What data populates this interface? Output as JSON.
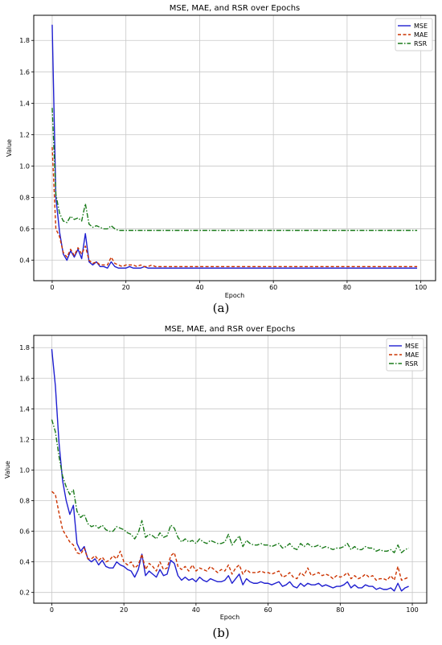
{
  "captions": [
    "(a)",
    "(b)"
  ],
  "chart_data": [
    {
      "type": "line",
      "title": "MSE, MAE, and RSR over Epochs",
      "xlabel": "Epoch",
      "ylabel": "Value",
      "xlim": [
        -5,
        104
      ],
      "ylim": [
        0.27,
        1.96
      ],
      "xticks": [
        0,
        20,
        40,
        60,
        80,
        100
      ],
      "yticks": [
        0.4,
        0.6,
        0.8,
        1.0,
        1.2,
        1.4,
        1.6,
        1.8
      ],
      "ytick_labels": [
        "0.4",
        "0.6",
        "0.8",
        "1.0",
        "1.2",
        "1.4",
        "1.6",
        "1.8"
      ],
      "grid": true,
      "legend": "top-right",
      "x": [
        0,
        1,
        2,
        3,
        4,
        5,
        6,
        7,
        8,
        9,
        10,
        11,
        12,
        13,
        14,
        15,
        16,
        17,
        18,
        19,
        20,
        21,
        22,
        23,
        24,
        25,
        26,
        27,
        28,
        29,
        30,
        31,
        32,
        33,
        34,
        35,
        36,
        37,
        38,
        39,
        40,
        41,
        42,
        43,
        44,
        45,
        46,
        47,
        48,
        49,
        50,
        51,
        52,
        53,
        54,
        55,
        56,
        57,
        58,
        59,
        60,
        61,
        62,
        63,
        64,
        65,
        66,
        67,
        68,
        69,
        70,
        71,
        72,
        73,
        74,
        75,
        76,
        77,
        78,
        79,
        80,
        81,
        82,
        83,
        84,
        85,
        86,
        87,
        88,
        89,
        90,
        91,
        92,
        93,
        94,
        95,
        96,
        97,
        98,
        99
      ],
      "series": [
        {
          "name": "MSE",
          "color": "#1f1fd0",
          "dash": "solid",
          "values": [
            1.9,
            0.8,
            0.58,
            0.44,
            0.4,
            0.46,
            0.42,
            0.47,
            0.41,
            0.57,
            0.39,
            0.37,
            0.39,
            0.36,
            0.36,
            0.35,
            0.39,
            0.36,
            0.35,
            0.35,
            0.35,
            0.36,
            0.35,
            0.35,
            0.35,
            0.36,
            0.35,
            0.35,
            0.35,
            0.35,
            0.35,
            0.35,
            0.35,
            0.35,
            0.35,
            0.35,
            0.35,
            0.35,
            0.35,
            0.35,
            0.35,
            0.35,
            0.35,
            0.35,
            0.35,
            0.35,
            0.35,
            0.35,
            0.35,
            0.35,
            0.35,
            0.35,
            0.35,
            0.35,
            0.35,
            0.35,
            0.35,
            0.35,
            0.35,
            0.35,
            0.35,
            0.35,
            0.35,
            0.35,
            0.35,
            0.35,
            0.35,
            0.35,
            0.35,
            0.35,
            0.35,
            0.35,
            0.35,
            0.35,
            0.35,
            0.35,
            0.35,
            0.35,
            0.35,
            0.35,
            0.35,
            0.35,
            0.35,
            0.35,
            0.35,
            0.35,
            0.35,
            0.35,
            0.35,
            0.35,
            0.35,
            0.35,
            0.35,
            0.35,
            0.35,
            0.35,
            0.35,
            0.35,
            0.35,
            0.35
          ]
        },
        {
          "name": "MAE",
          "color": "#cc3300",
          "dash": "dashed",
          "values": [
            1.12,
            0.6,
            0.55,
            0.45,
            0.42,
            0.47,
            0.43,
            0.48,
            0.44,
            0.49,
            0.4,
            0.38,
            0.39,
            0.37,
            0.37,
            0.37,
            0.42,
            0.38,
            0.37,
            0.36,
            0.37,
            0.37,
            0.37,
            0.36,
            0.37,
            0.36,
            0.36,
            0.37,
            0.36,
            0.36,
            0.36,
            0.36,
            0.36,
            0.36,
            0.36,
            0.36,
            0.36,
            0.36,
            0.36,
            0.36,
            0.36,
            0.36,
            0.36,
            0.36,
            0.36,
            0.36,
            0.36,
            0.36,
            0.36,
            0.36,
            0.36,
            0.36,
            0.36,
            0.36,
            0.36,
            0.36,
            0.36,
            0.36,
            0.36,
            0.36,
            0.36,
            0.36,
            0.36,
            0.36,
            0.36,
            0.36,
            0.36,
            0.36,
            0.36,
            0.36,
            0.36,
            0.36,
            0.36,
            0.36,
            0.36,
            0.36,
            0.36,
            0.36,
            0.36,
            0.36,
            0.36,
            0.36,
            0.36,
            0.36,
            0.36,
            0.36,
            0.36,
            0.36,
            0.36,
            0.36,
            0.36,
            0.36,
            0.36,
            0.36,
            0.36,
            0.36,
            0.36,
            0.36,
            0.36,
            0.36
          ]
        },
        {
          "name": "RSR",
          "color": "#1a7a1a",
          "dash": "dashdot",
          "values": [
            1.37,
            0.82,
            0.7,
            0.65,
            0.64,
            0.68,
            0.66,
            0.67,
            0.65,
            0.76,
            0.63,
            0.61,
            0.62,
            0.61,
            0.6,
            0.6,
            0.62,
            0.6,
            0.59,
            0.59,
            0.59,
            0.59,
            0.59,
            0.59,
            0.59,
            0.59,
            0.59,
            0.59,
            0.59,
            0.59,
            0.59,
            0.59,
            0.59,
            0.59,
            0.59,
            0.59,
            0.59,
            0.59,
            0.59,
            0.59,
            0.59,
            0.59,
            0.59,
            0.59,
            0.59,
            0.59,
            0.59,
            0.59,
            0.59,
            0.59,
            0.59,
            0.59,
            0.59,
            0.59,
            0.59,
            0.59,
            0.59,
            0.59,
            0.59,
            0.59,
            0.59,
            0.59,
            0.59,
            0.59,
            0.59,
            0.59,
            0.59,
            0.59,
            0.59,
            0.59,
            0.59,
            0.59,
            0.59,
            0.59,
            0.59,
            0.59,
            0.59,
            0.59,
            0.59,
            0.59,
            0.59,
            0.59,
            0.59,
            0.59,
            0.59,
            0.59,
            0.59,
            0.59,
            0.59,
            0.59,
            0.59,
            0.59,
            0.59,
            0.59,
            0.59,
            0.59,
            0.59,
            0.59,
            0.59,
            0.59
          ]
        }
      ]
    },
    {
      "type": "line",
      "title": "MSE, MAE, and RSR over Epochs",
      "xlabel": "Epoch",
      "ylabel": "Value",
      "xlim": [
        -5,
        104
      ],
      "ylim": [
        0.13,
        1.88
      ],
      "xticks": [
        0,
        20,
        40,
        60,
        80,
        100
      ],
      "yticks": [
        0.2,
        0.4,
        0.6,
        0.8,
        1.0,
        1.2,
        1.4,
        1.6,
        1.8
      ],
      "ytick_labels": [
        "0.2",
        "0.4",
        "0.6",
        "0.8",
        "1.0",
        "1.2",
        "1.4",
        "1.6",
        "1.8"
      ],
      "grid": true,
      "legend": "top-right",
      "x": [
        0,
        1,
        2,
        3,
        4,
        5,
        6,
        7,
        8,
        9,
        10,
        11,
        12,
        13,
        14,
        15,
        16,
        17,
        18,
        19,
        20,
        21,
        22,
        23,
        24,
        25,
        26,
        27,
        28,
        29,
        30,
        31,
        32,
        33,
        34,
        35,
        36,
        37,
        38,
        39,
        40,
        41,
        42,
        43,
        44,
        45,
        46,
        47,
        48,
        49,
        50,
        51,
        52,
        53,
        54,
        55,
        56,
        57,
        58,
        59,
        60,
        61,
        62,
        63,
        64,
        65,
        66,
        67,
        68,
        69,
        70,
        71,
        72,
        73,
        74,
        75,
        76,
        77,
        78,
        79,
        80,
        81,
        82,
        83,
        84,
        85,
        86,
        87,
        88,
        89,
        90,
        91,
        92,
        93,
        94,
        95,
        96,
        97,
        98,
        99
      ],
      "series": [
        {
          "name": "MSE",
          "color": "#1f1fd0",
          "dash": "solid",
          "values": [
            1.79,
            1.55,
            1.18,
            0.93,
            0.8,
            0.71,
            0.77,
            0.52,
            0.47,
            0.5,
            0.42,
            0.4,
            0.42,
            0.38,
            0.41,
            0.37,
            0.36,
            0.36,
            0.4,
            0.38,
            0.37,
            0.35,
            0.34,
            0.3,
            0.35,
            0.45,
            0.31,
            0.34,
            0.32,
            0.3,
            0.35,
            0.31,
            0.32,
            0.41,
            0.39,
            0.31,
            0.28,
            0.3,
            0.28,
            0.29,
            0.27,
            0.3,
            0.28,
            0.27,
            0.29,
            0.28,
            0.27,
            0.27,
            0.28,
            0.31,
            0.26,
            0.29,
            0.32,
            0.25,
            0.29,
            0.27,
            0.26,
            0.26,
            0.27,
            0.26,
            0.26,
            0.25,
            0.26,
            0.27,
            0.24,
            0.25,
            0.27,
            0.24,
            0.23,
            0.26,
            0.24,
            0.26,
            0.25,
            0.25,
            0.26,
            0.24,
            0.25,
            0.24,
            0.23,
            0.24,
            0.24,
            0.25,
            0.27,
            0.23,
            0.25,
            0.23,
            0.23,
            0.25,
            0.24,
            0.24,
            0.22,
            0.23,
            0.22,
            0.22,
            0.23,
            0.21,
            0.26,
            0.21,
            0.23,
            0.24
          ]
        },
        {
          "name": "MAE",
          "color": "#cc3300",
          "dash": "dashed",
          "values": [
            0.86,
            0.84,
            0.72,
            0.61,
            0.57,
            0.53,
            0.51,
            0.46,
            0.45,
            0.49,
            0.42,
            0.42,
            0.44,
            0.41,
            0.43,
            0.4,
            0.41,
            0.44,
            0.42,
            0.47,
            0.4,
            0.38,
            0.4,
            0.36,
            0.38,
            0.45,
            0.35,
            0.39,
            0.37,
            0.34,
            0.4,
            0.35,
            0.36,
            0.44,
            0.46,
            0.37,
            0.35,
            0.37,
            0.34,
            0.38,
            0.34,
            0.36,
            0.35,
            0.34,
            0.37,
            0.35,
            0.33,
            0.35,
            0.34,
            0.38,
            0.32,
            0.36,
            0.38,
            0.32,
            0.35,
            0.33,
            0.33,
            0.33,
            0.34,
            0.33,
            0.33,
            0.32,
            0.33,
            0.34,
            0.3,
            0.31,
            0.33,
            0.3,
            0.29,
            0.33,
            0.31,
            0.36,
            0.31,
            0.32,
            0.33,
            0.31,
            0.32,
            0.31,
            0.29,
            0.31,
            0.3,
            0.31,
            0.33,
            0.29,
            0.31,
            0.29,
            0.3,
            0.32,
            0.3,
            0.31,
            0.28,
            0.29,
            0.29,
            0.28,
            0.31,
            0.28,
            0.37,
            0.28,
            0.29,
            0.3
          ]
        },
        {
          "name": "RSR",
          "color": "#1a7a1a",
          "dash": "dashdot",
          "values": [
            1.33,
            1.25,
            1.09,
            0.96,
            0.89,
            0.84,
            0.87,
            0.73,
            0.69,
            0.71,
            0.65,
            0.63,
            0.64,
            0.62,
            0.64,
            0.61,
            0.6,
            0.6,
            0.63,
            0.62,
            0.61,
            0.59,
            0.58,
            0.55,
            0.59,
            0.67,
            0.56,
            0.58,
            0.57,
            0.55,
            0.59,
            0.56,
            0.57,
            0.64,
            0.62,
            0.56,
            0.53,
            0.55,
            0.53,
            0.54,
            0.52,
            0.55,
            0.53,
            0.52,
            0.54,
            0.53,
            0.52,
            0.52,
            0.53,
            0.58,
            0.51,
            0.54,
            0.57,
            0.5,
            0.54,
            0.52,
            0.51,
            0.51,
            0.52,
            0.51,
            0.51,
            0.5,
            0.51,
            0.52,
            0.49,
            0.5,
            0.52,
            0.49,
            0.48,
            0.52,
            0.5,
            0.52,
            0.5,
            0.5,
            0.51,
            0.49,
            0.5,
            0.49,
            0.48,
            0.49,
            0.49,
            0.5,
            0.52,
            0.48,
            0.5,
            0.48,
            0.48,
            0.5,
            0.49,
            0.49,
            0.47,
            0.48,
            0.47,
            0.47,
            0.48,
            0.46,
            0.51,
            0.46,
            0.48,
            0.49
          ]
        }
      ]
    }
  ]
}
